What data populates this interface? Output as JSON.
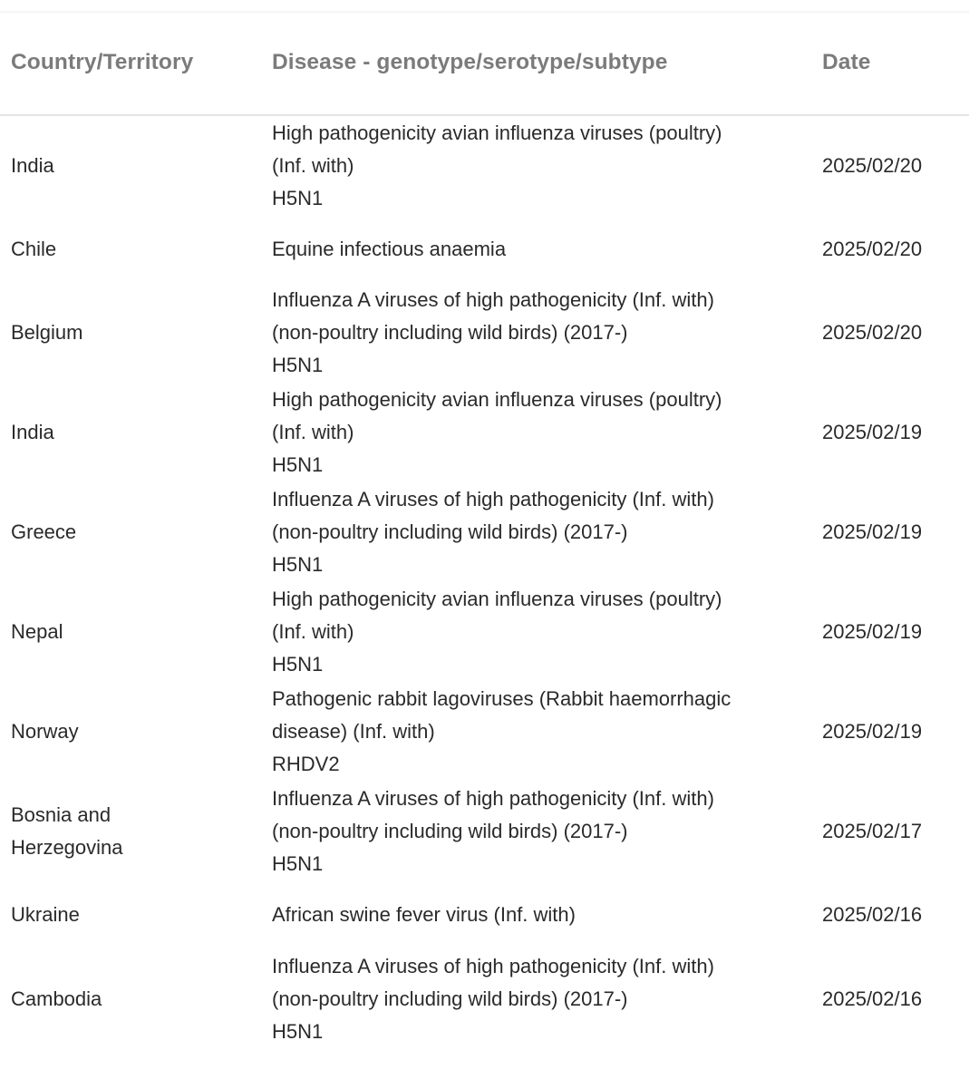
{
  "table": {
    "headers": {
      "country": "Country/Territory",
      "disease": "Disease - genotype/serotype/subtype",
      "date": "Date"
    },
    "rows": [
      {
        "country": [
          "India"
        ],
        "disease": [
          "High pathogenicity avian influenza viruses (poultry)",
          "(Inf. with)",
          "H5N1"
        ],
        "date": "2025/02/20"
      },
      {
        "country": [
          "Chile"
        ],
        "disease": [
          "Equine infectious anaemia"
        ],
        "date": "2025/02/20"
      },
      {
        "country": [
          "Belgium"
        ],
        "disease": [
          "Influenza A viruses of high pathogenicity (Inf. with)",
          "(non-poultry including wild birds) (2017-)",
          "H5N1"
        ],
        "date": "2025/02/20"
      },
      {
        "country": [
          "India"
        ],
        "disease": [
          "High pathogenicity avian influenza viruses (poultry)",
          "(Inf. with)",
          "H5N1"
        ],
        "date": "2025/02/19"
      },
      {
        "country": [
          "Greece"
        ],
        "disease": [
          "Influenza A viruses of high pathogenicity (Inf. with)",
          "(non-poultry including wild birds) (2017-)",
          "H5N1"
        ],
        "date": "2025/02/19"
      },
      {
        "country": [
          "Nepal"
        ],
        "disease": [
          "High pathogenicity avian influenza viruses (poultry)",
          "(Inf. with)",
          "H5N1"
        ],
        "date": "2025/02/19"
      },
      {
        "country": [
          "Norway"
        ],
        "disease": [
          "Pathogenic rabbit lagoviruses (Rabbit haemorrhagic",
          "disease) (Inf. with)",
          "RHDV2"
        ],
        "date": "2025/02/19"
      },
      {
        "country": [
          "Bosnia and",
          "Herzegovina"
        ],
        "disease": [
          "Influenza A viruses of high pathogenicity (Inf. with)",
          "(non-poultry including wild birds) (2017-)",
          "H5N1"
        ],
        "date": "2025/02/17"
      },
      {
        "country": [
          "Ukraine"
        ],
        "disease": [
          "African swine fever virus (Inf. with)"
        ],
        "date": "2025/02/16"
      },
      {
        "country": [
          "Cambodia"
        ],
        "disease": [
          "Influenza A viruses of high pathogenicity (Inf. with)",
          "(non-poultry including wild birds) (2017-)",
          "H5N1"
        ],
        "date": "2025/02/16"
      }
    ]
  }
}
